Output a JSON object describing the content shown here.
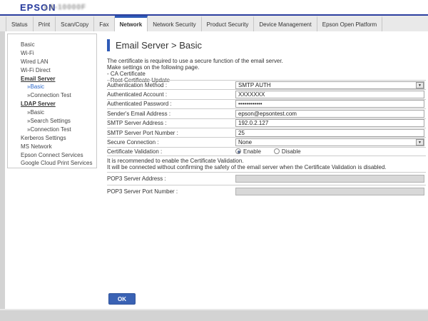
{
  "header": {
    "logo": "EPSON",
    "model": "LX-10000F"
  },
  "tabs": [
    {
      "label": "Status",
      "active": false
    },
    {
      "label": "Print",
      "active": false
    },
    {
      "label": "Scan/Copy",
      "active": false
    },
    {
      "label": "Fax",
      "active": false
    },
    {
      "label": "Network",
      "active": true
    },
    {
      "label": "Network Security",
      "active": false
    },
    {
      "label": "Product Security",
      "active": false
    },
    {
      "label": "Device Management",
      "active": false
    },
    {
      "label": "Epson Open Platform",
      "active": false
    }
  ],
  "sidebar": {
    "items": [
      {
        "label": "Basic"
      },
      {
        "label": "Wi-Fi"
      },
      {
        "label": "Wired LAN"
      },
      {
        "label": "Wi-Fi Direct"
      },
      {
        "label": "Email Server",
        "section": true
      },
      {
        "label": "»Basic",
        "sub": true,
        "active": true
      },
      {
        "label": "»Connection Test",
        "sub": true
      },
      {
        "label": "LDAP Server",
        "section": true
      },
      {
        "label": "»Basic",
        "sub": true
      },
      {
        "label": "»Search Settings",
        "sub": true
      },
      {
        "label": "»Connection Test",
        "sub": true
      },
      {
        "label": "Kerberos Settings"
      },
      {
        "label": "MS Network"
      },
      {
        "label": "Epson Connect Services"
      },
      {
        "label": "Google Cloud Print Services"
      }
    ]
  },
  "main": {
    "title": "Email Server > Basic",
    "description": [
      "The certificate is required to use a secure function of the email server.",
      "Make settings on the following page.",
      "- CA Certificate",
      "- Root Certificate Update"
    ],
    "form": {
      "auth_method": {
        "label": "Authentication Method :",
        "value": "SMTP AUTH"
      },
      "auth_account": {
        "label": "Authenticated Account :",
        "value": "XXXXXXX"
      },
      "auth_password": {
        "label": "Authenticated Password :",
        "value": "••••••••••••"
      },
      "sender_email": {
        "label": "Sender's Email Address :",
        "value": "epson@epsontest.com"
      },
      "smtp_address": {
        "label": "SMTP Server Address :",
        "value": "192.0.2.127"
      },
      "smtp_port": {
        "label": "SMTP Server Port Number :",
        "value": "25"
      },
      "secure_connection": {
        "label": "Secure Connection :",
        "value": "None"
      },
      "cert_validation": {
        "label": "Certificate Validation :",
        "options": [
          "Enable",
          "Disable"
        ],
        "selected": "Enable"
      },
      "pop3_address": {
        "label": "POP3 Server Address :",
        "value": ""
      },
      "pop3_port": {
        "label": "POP3 Server Port Number :",
        "value": ""
      }
    },
    "note": [
      "It is recommended to enable the Certificate Validation.",
      "It will be connected without confirming the safety of the email server when the Certificate Validation is disabled."
    ],
    "ok_label": "OK"
  },
  "colors": {
    "accent_blue": "#2f5bb7",
    "epson_blue": "#24389c",
    "ok_button": "#3a62b4",
    "chrome_gray": "#d3d3d3"
  }
}
